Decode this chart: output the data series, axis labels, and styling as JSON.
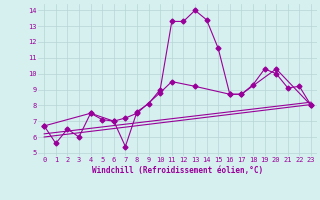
{
  "xlabel": "Windchill (Refroidissement éolien,°C)",
  "bg_color": "#d6f0f0",
  "grid_color": "#b8d4d4",
  "line_color": "#990099",
  "xlim": [
    -0.5,
    23.5
  ],
  "ylim": [
    4.8,
    14.4
  ],
  "yticks": [
    5,
    6,
    7,
    8,
    9,
    10,
    11,
    12,
    13,
    14
  ],
  "xticks": [
    0,
    1,
    2,
    3,
    4,
    5,
    6,
    7,
    8,
    9,
    10,
    11,
    12,
    13,
    14,
    15,
    16,
    17,
    18,
    19,
    20,
    21,
    22,
    23
  ],
  "series1_x": [
    0,
    1,
    2,
    3,
    4,
    5,
    6,
    7,
    8,
    9,
    10,
    11,
    12,
    13,
    14,
    15,
    16,
    17,
    18,
    19,
    20,
    21,
    22,
    23
  ],
  "series1_y": [
    6.7,
    5.6,
    6.5,
    6.0,
    7.5,
    7.1,
    7.0,
    5.4,
    7.6,
    8.1,
    9.0,
    13.3,
    13.3,
    14.0,
    13.4,
    11.6,
    8.7,
    8.7,
    9.3,
    10.3,
    10.0,
    9.1,
    9.2,
    8.0
  ],
  "series2_x": [
    0,
    4,
    6,
    7,
    8,
    10,
    11,
    13,
    16,
    17,
    20,
    23
  ],
  "series2_y": [
    6.7,
    7.5,
    7.0,
    7.2,
    7.5,
    8.8,
    9.5,
    9.2,
    8.7,
    8.7,
    10.3,
    8.0
  ],
  "series3_x": [
    0,
    23
  ],
  "series3_y": [
    6.2,
    8.2
  ],
  "series4_x": [
    0,
    23
  ],
  "series4_y": [
    6.0,
    8.05
  ],
  "markersize": 2.5,
  "linewidth": 0.8,
  "axis_fontsize": 5.5,
  "tick_fontsize": 5.0
}
